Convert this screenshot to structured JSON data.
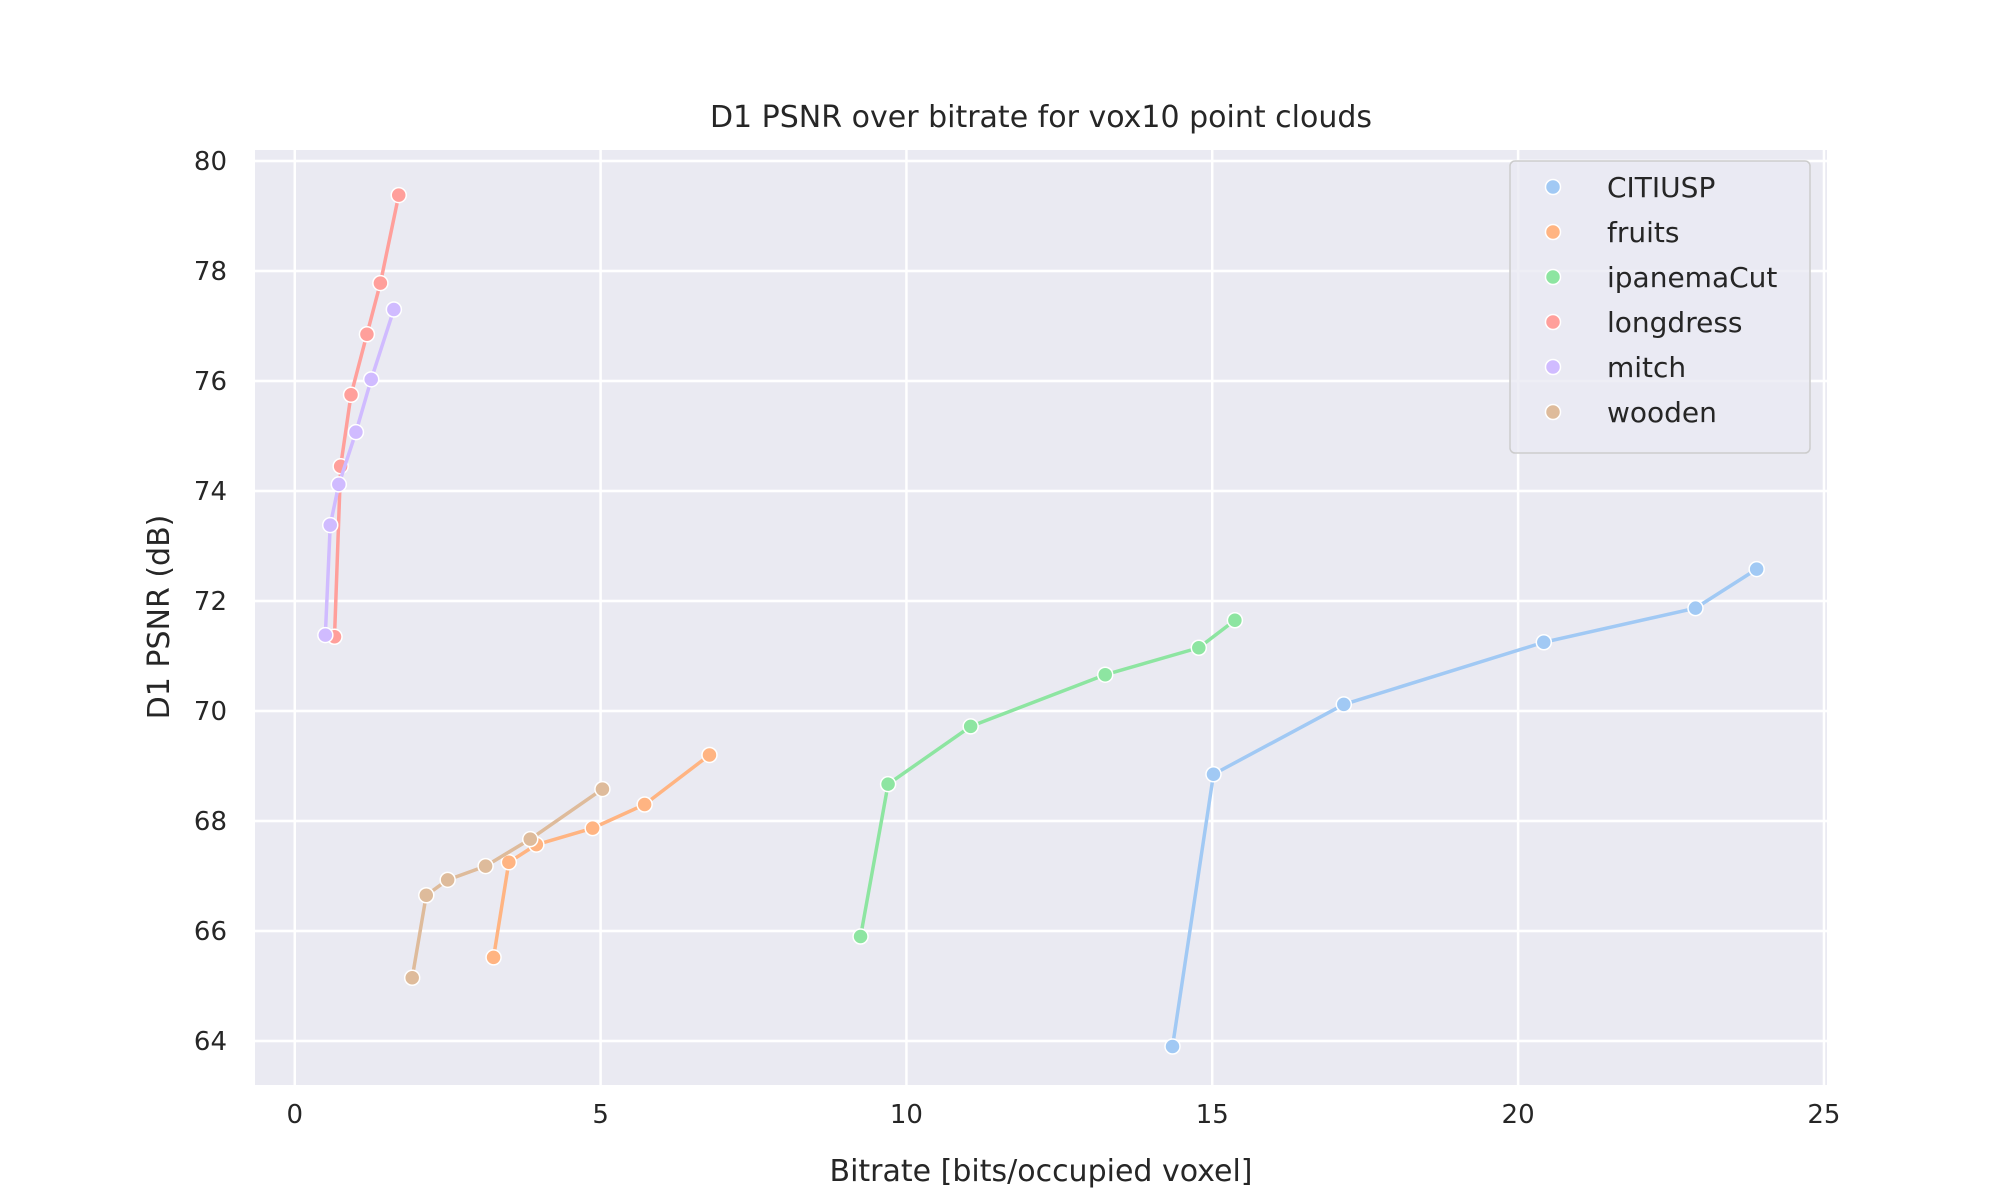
{
  "chart_data": {
    "type": "line",
    "title": "D1 PSNR over bitrate for vox10 point clouds",
    "xlabel": "Bitrate [bits/occupied voxel]",
    "ylabel": "D1 PSNR (dB)",
    "xlim": [
      -0.65,
      25.05
    ],
    "ylim": [
      63.2,
      80.2
    ],
    "xticks": [
      0,
      5,
      10,
      15,
      20,
      25
    ],
    "yticks": [
      64,
      66,
      68,
      70,
      72,
      74,
      76,
      78,
      80
    ],
    "grid": true,
    "legend_position": "top-right",
    "series": [
      {
        "name": "CITIUSP",
        "color": "#a1c9f4",
        "x": [
          14.35,
          15.02,
          17.15,
          20.42,
          22.9,
          23.9
        ],
        "y": [
          63.9,
          68.85,
          70.12,
          71.25,
          71.87,
          72.58
        ]
      },
      {
        "name": "fruits",
        "color": "#ffb482",
        "x": [
          3.25,
          3.5,
          3.95,
          4.87,
          5.72,
          6.78
        ],
        "y": [
          65.52,
          67.25,
          67.57,
          67.87,
          68.3,
          69.2
        ]
      },
      {
        "name": "ipanemaCut",
        "color": "#8de5a1",
        "x": [
          9.25,
          9.7,
          11.05,
          13.25,
          14.78,
          15.37
        ],
        "y": [
          65.9,
          68.67,
          69.72,
          70.66,
          71.15,
          71.65
        ]
      },
      {
        "name": "longdress",
        "color": "#ff9f9b",
        "x": [
          0.65,
          0.75,
          0.92,
          1.18,
          1.4,
          1.7
        ],
        "y": [
          71.35,
          74.45,
          75.75,
          76.85,
          77.78,
          79.38
        ]
      },
      {
        "name": "mitch",
        "color": "#d0bbff",
        "x": [
          0.5,
          0.58,
          0.72,
          1.0,
          1.25,
          1.62
        ],
        "y": [
          71.38,
          73.38,
          74.12,
          75.07,
          76.03,
          77.3
        ]
      },
      {
        "name": "wooden",
        "color": "#debb9b",
        "x": [
          1.92,
          2.15,
          2.5,
          3.12,
          3.85,
          5.03
        ],
        "y": [
          65.15,
          66.65,
          66.93,
          67.18,
          67.67,
          68.58
        ]
      }
    ]
  }
}
